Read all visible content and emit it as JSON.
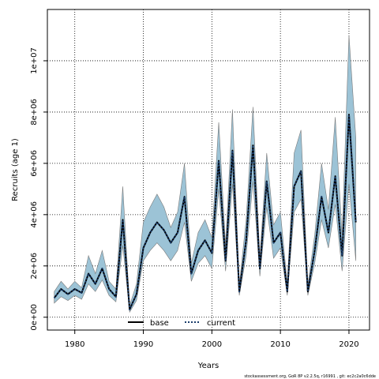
{
  "chart_data": {
    "type": "line",
    "xlabel": "Years",
    "ylabel": "Recruits (age 1)",
    "xlim": [
      1976,
      2023
    ],
    "ylim": [
      -500000,
      12000000
    ],
    "x_ticks": [
      1980,
      1990,
      2000,
      2010,
      2020
    ],
    "y_ticks": [
      0,
      2000000,
      4000000,
      6000000,
      8000000,
      10000000
    ],
    "y_tick_labels": [
      "0e+00",
      "2e+06",
      "4e+06",
      "6e+06",
      "8e+06",
      "1e+07"
    ],
    "grid": true,
    "legend_position": "bottom-center",
    "colors": {
      "band": "#9cc3d6",
      "band_edge": "#7a7a7a",
      "base": "#000000",
      "current": "#1a3d6b",
      "grid": "#000000"
    },
    "x": [
      1977,
      1978,
      1979,
      1980,
      1981,
      1982,
      1983,
      1984,
      1985,
      1986,
      1987,
      1988,
      1989,
      1990,
      1991,
      1992,
      1993,
      1994,
      1995,
      1996,
      1997,
      1998,
      1999,
      2000,
      2001,
      2002,
      2003,
      2004,
      2005,
      2006,
      2007,
      2008,
      2009,
      2010,
      2011,
      2012,
      2013,
      2014,
      2015,
      2016,
      2017,
      2018,
      2019,
      2020,
      2021
    ],
    "series": [
      {
        "name": "base",
        "style": "solid",
        "values": [
          750000,
          1100000,
          900000,
          1100000,
          950000,
          1700000,
          1300000,
          1900000,
          1100000,
          800000,
          3800000,
          300000,
          900000,
          2700000,
          3300000,
          3700000,
          3400000,
          2900000,
          3300000,
          4700000,
          1700000,
          2600000,
          3000000,
          2500000,
          6100000,
          2200000,
          6500000,
          1000000,
          3000000,
          6700000,
          1900000,
          5300000,
          2900000,
          3300000,
          1000000,
          5100000,
          5700000,
          1000000,
          2600000,
          4700000,
          3300000,
          5500000,
          2400000,
          7900000,
          3700000
        ]
      },
      {
        "name": "current",
        "style": "dotted",
        "values": [
          750000,
          1100000,
          900000,
          1100000,
          950000,
          1700000,
          1300000,
          1900000,
          1100000,
          800000,
          3800000,
          300000,
          900000,
          2700000,
          3300000,
          3700000,
          3400000,
          2900000,
          3300000,
          4700000,
          1700000,
          2600000,
          3000000,
          2500000,
          6100000,
          2200000,
          6500000,
          1000000,
          3000000,
          6700000,
          1900000,
          5300000,
          2900000,
          3300000,
          1000000,
          5100000,
          5700000,
          1000000,
          2600000,
          4700000,
          3300000,
          5500000,
          2400000,
          7900000,
          3700000
        ]
      }
    ],
    "band_low": [
      550000,
      800000,
      650000,
      850000,
      700000,
      1300000,
      1000000,
      1450000,
      850000,
      600000,
      2800000,
      200000,
      650000,
      2200000,
      2600000,
      2900000,
      2600000,
      2200000,
      2600000,
      3700000,
      1400000,
      2100000,
      2400000,
      1900000,
      5000000,
      1800000,
      5200000,
      850000,
      2400000,
      5300000,
      1600000,
      4300000,
      2300000,
      2700000,
      850000,
      4100000,
      4600000,
      850000,
      2100000,
      3800000,
      2700000,
      4400000,
      1800000,
      5200000,
      2200000
    ],
    "band_high": [
      1000000,
      1400000,
      1100000,
      1400000,
      1150000,
      2400000,
      1700000,
      2600000,
      1400000,
      1100000,
      5100000,
      450000,
      1300000,
      3700000,
      4300000,
      4800000,
      4300000,
      3500000,
      4100000,
      6000000,
      2100000,
      3300000,
      3800000,
      3100000,
      7600000,
      2800000,
      8100000,
      1250000,
      3800000,
      8200000,
      2300000,
      6400000,
      3600000,
      4100000,
      1300000,
      6400000,
      7300000,
      1250000,
      3200000,
      6000000,
      4200000,
      7800000,
      3200000,
      11000000,
      7000000
    ]
  },
  "legend": {
    "base_label": "base",
    "current_label": "current"
  },
  "footer": {
    "text": "stockassessment.org, GoR 8P v2.2.5q, r16991 , git: ec2c2a0c6dde"
  }
}
